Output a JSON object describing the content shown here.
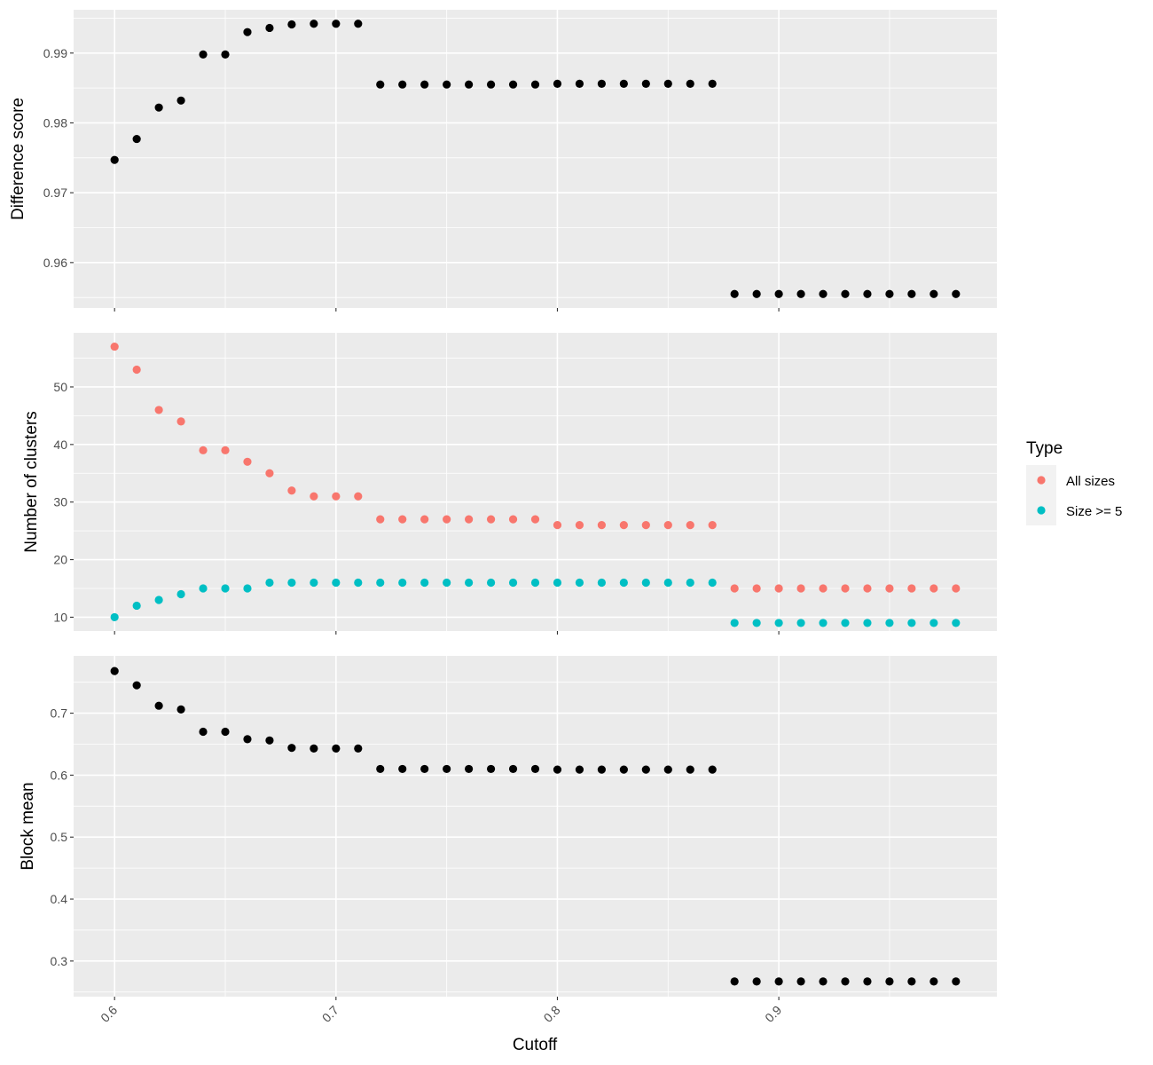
{
  "chart_data": {
    "type": "scatter",
    "xlabel": "Cutoff",
    "x": [
      0.6,
      0.61,
      0.62,
      0.63,
      0.64,
      0.65,
      0.66,
      0.67,
      0.68,
      0.69,
      0.7,
      0.71,
      0.72,
      0.73,
      0.74,
      0.75,
      0.76,
      0.77,
      0.78,
      0.79,
      0.8,
      0.81,
      0.82,
      0.83,
      0.84,
      0.85,
      0.86,
      0.87,
      0.88,
      0.89,
      0.9,
      0.91,
      0.92,
      0.93,
      0.94,
      0.95,
      0.96,
      0.97,
      0.98
    ],
    "xlim": [
      0.5815,
      0.9985
    ],
    "x_ticks": [
      0.6,
      0.7,
      0.8,
      0.9
    ],
    "x_tick_labels": [
      "0.6",
      "0.7",
      "0.8",
      "0.9"
    ],
    "grid": true,
    "legend": {
      "title": "Type",
      "position": "right",
      "entries": [
        {
          "label": "All sizes",
          "color": "#F8766D"
        },
        {
          "label": "Size >= 5",
          "color": "#00BFC4"
        }
      ]
    },
    "panels": [
      {
        "ylabel": "Difference score",
        "ylim": [
          0.9535,
          0.9962
        ],
        "y_ticks": [
          0.96,
          0.97,
          0.98,
          0.99
        ],
        "y_tick_labels": [
          "0.96",
          "0.97",
          "0.98",
          "0.99"
        ],
        "series": [
          {
            "color": "#000000",
            "values": [
              0.9747,
              0.9777,
              0.9822,
              0.9832,
              0.9898,
              0.9898,
              0.993,
              0.9936,
              0.9941,
              0.9942,
              0.9942,
              0.9942,
              0.9855,
              0.9855,
              0.9855,
              0.9855,
              0.9855,
              0.9855,
              0.9855,
              0.9855,
              0.9856,
              0.9856,
              0.9856,
              0.9856,
              0.9856,
              0.9856,
              0.9856,
              0.9856,
              0.9555,
              0.9555,
              0.9555,
              0.9555,
              0.9555,
              0.9555,
              0.9555,
              0.9555,
              0.9555,
              0.9555,
              0.9555
            ]
          }
        ]
      },
      {
        "ylabel": "Number of clusters",
        "ylim": [
          7.6,
          59.4
        ],
        "y_ticks": [
          10,
          20,
          30,
          40,
          50
        ],
        "y_tick_labels": [
          "10",
          "20",
          "30",
          "40",
          "50"
        ],
        "series": [
          {
            "name": "All sizes",
            "color": "#F8766D",
            "values": [
              57,
              53,
              46,
              44,
              39,
              39,
              37,
              35,
              32,
              31,
              31,
              31,
              27,
              27,
              27,
              27,
              27,
              27,
              27,
              27,
              26,
              26,
              26,
              26,
              26,
              26,
              26,
              26,
              15,
              15,
              15,
              15,
              15,
              15,
              15,
              15,
              15,
              15,
              15
            ]
          },
          {
            "name": "Size >= 5",
            "color": "#00BFC4",
            "values": [
              10,
              12,
              13,
              14,
              15,
              15,
              15,
              16,
              16,
              16,
              16,
              16,
              16,
              16,
              16,
              16,
              16,
              16,
              16,
              16,
              16,
              16,
              16,
              16,
              16,
              16,
              16,
              16,
              9,
              9,
              9,
              9,
              9,
              9,
              9,
              9,
              9,
              9,
              9
            ]
          }
        ]
      },
      {
        "ylabel": "Block mean",
        "ylim": [
          0.2425,
          0.7925
        ],
        "y_ticks": [
          0.3,
          0.4,
          0.5,
          0.6,
          0.7
        ],
        "y_tick_labels": [
          "0.3",
          "0.4",
          "0.5",
          "0.6",
          "0.7"
        ],
        "series": [
          {
            "color": "#000000",
            "values": [
              0.768,
              0.745,
              0.712,
              0.706,
              0.67,
              0.67,
              0.658,
              0.656,
              0.644,
              0.643,
              0.643,
              0.643,
              0.61,
              0.61,
              0.61,
              0.61,
              0.61,
              0.61,
              0.61,
              0.61,
              0.609,
              0.609,
              0.609,
              0.609,
              0.609,
              0.609,
              0.609,
              0.609,
              0.267,
              0.267,
              0.267,
              0.267,
              0.267,
              0.267,
              0.267,
              0.267,
              0.267,
              0.267,
              0.267
            ]
          }
        ]
      }
    ]
  }
}
